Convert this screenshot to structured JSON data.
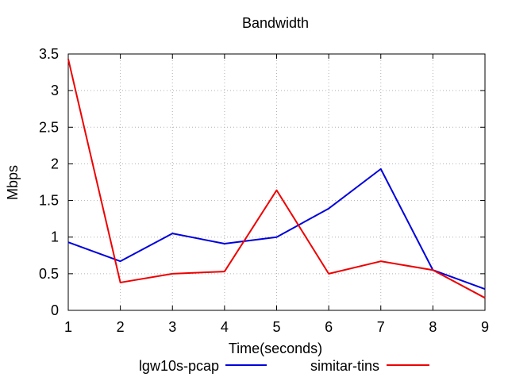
{
  "chart_data": {
    "type": "line",
    "title": "Bandwidth",
    "xlabel": "Time(seconds)",
    "ylabel": "Mbps",
    "xlim": [
      1,
      9
    ],
    "ylim": [
      0,
      3.5
    ],
    "x": [
      1,
      2,
      3,
      4,
      5,
      6,
      7,
      8,
      9
    ],
    "xticks": [
      "1",
      "2",
      "3",
      "4",
      "5",
      "6",
      "7",
      "8",
      "9"
    ],
    "yticks": [
      "0",
      "0.5",
      "1",
      "1.5",
      "2",
      "2.5",
      "3",
      "3.5"
    ],
    "grid": true,
    "legend_position": "bottom",
    "series": [
      {
        "name": "lgw10s-pcap",
        "color": "#0000dd",
        "values": [
          0.93,
          0.67,
          1.05,
          0.91,
          1.0,
          1.39,
          1.93,
          0.55,
          0.29
        ]
      },
      {
        "name": "simitar-tins",
        "color": "#ee0000",
        "values": [
          3.43,
          0.38,
          0.5,
          0.53,
          1.64,
          0.5,
          0.67,
          0.55,
          0.17
        ]
      }
    ]
  }
}
